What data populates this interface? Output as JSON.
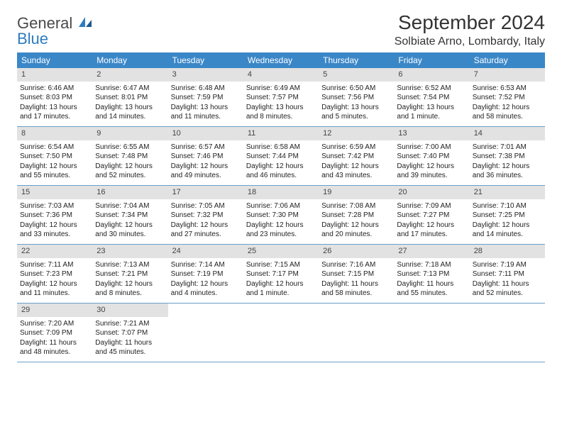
{
  "brand": {
    "general": "General",
    "blue": "Blue"
  },
  "title": "September 2024",
  "location": "Solbiate Arno, Lombardy, Italy",
  "colors": {
    "header_bg": "#3a87c8",
    "header_text": "#ffffff",
    "daynum_bg": "#e2e2e2",
    "row_border": "#6a9fc8",
    "brand_blue": "#2e7cbf",
    "brand_gray": "#4a4a4a"
  },
  "weekdays": [
    "Sunday",
    "Monday",
    "Tuesday",
    "Wednesday",
    "Thursday",
    "Friday",
    "Saturday"
  ],
  "weeks": [
    [
      {
        "n": "1",
        "sr": "6:46 AM",
        "ss": "8:03 PM",
        "dl": "13 hours and 17 minutes."
      },
      {
        "n": "2",
        "sr": "6:47 AM",
        "ss": "8:01 PM",
        "dl": "13 hours and 14 minutes."
      },
      {
        "n": "3",
        "sr": "6:48 AM",
        "ss": "7:59 PM",
        "dl": "13 hours and 11 minutes."
      },
      {
        "n": "4",
        "sr": "6:49 AM",
        "ss": "7:57 PM",
        "dl": "13 hours and 8 minutes."
      },
      {
        "n": "5",
        "sr": "6:50 AM",
        "ss": "7:56 PM",
        "dl": "13 hours and 5 minutes."
      },
      {
        "n": "6",
        "sr": "6:52 AM",
        "ss": "7:54 PM",
        "dl": "13 hours and 1 minute."
      },
      {
        "n": "7",
        "sr": "6:53 AM",
        "ss": "7:52 PM",
        "dl": "12 hours and 58 minutes."
      }
    ],
    [
      {
        "n": "8",
        "sr": "6:54 AM",
        "ss": "7:50 PM",
        "dl": "12 hours and 55 minutes."
      },
      {
        "n": "9",
        "sr": "6:55 AM",
        "ss": "7:48 PM",
        "dl": "12 hours and 52 minutes."
      },
      {
        "n": "10",
        "sr": "6:57 AM",
        "ss": "7:46 PM",
        "dl": "12 hours and 49 minutes."
      },
      {
        "n": "11",
        "sr": "6:58 AM",
        "ss": "7:44 PM",
        "dl": "12 hours and 46 minutes."
      },
      {
        "n": "12",
        "sr": "6:59 AM",
        "ss": "7:42 PM",
        "dl": "12 hours and 43 minutes."
      },
      {
        "n": "13",
        "sr": "7:00 AM",
        "ss": "7:40 PM",
        "dl": "12 hours and 39 minutes."
      },
      {
        "n": "14",
        "sr": "7:01 AM",
        "ss": "7:38 PM",
        "dl": "12 hours and 36 minutes."
      }
    ],
    [
      {
        "n": "15",
        "sr": "7:03 AM",
        "ss": "7:36 PM",
        "dl": "12 hours and 33 minutes."
      },
      {
        "n": "16",
        "sr": "7:04 AM",
        "ss": "7:34 PM",
        "dl": "12 hours and 30 minutes."
      },
      {
        "n": "17",
        "sr": "7:05 AM",
        "ss": "7:32 PM",
        "dl": "12 hours and 27 minutes."
      },
      {
        "n": "18",
        "sr": "7:06 AM",
        "ss": "7:30 PM",
        "dl": "12 hours and 23 minutes."
      },
      {
        "n": "19",
        "sr": "7:08 AM",
        "ss": "7:28 PM",
        "dl": "12 hours and 20 minutes."
      },
      {
        "n": "20",
        "sr": "7:09 AM",
        "ss": "7:27 PM",
        "dl": "12 hours and 17 minutes."
      },
      {
        "n": "21",
        "sr": "7:10 AM",
        "ss": "7:25 PM",
        "dl": "12 hours and 14 minutes."
      }
    ],
    [
      {
        "n": "22",
        "sr": "7:11 AM",
        "ss": "7:23 PM",
        "dl": "12 hours and 11 minutes."
      },
      {
        "n": "23",
        "sr": "7:13 AM",
        "ss": "7:21 PM",
        "dl": "12 hours and 8 minutes."
      },
      {
        "n": "24",
        "sr": "7:14 AM",
        "ss": "7:19 PM",
        "dl": "12 hours and 4 minutes."
      },
      {
        "n": "25",
        "sr": "7:15 AM",
        "ss": "7:17 PM",
        "dl": "12 hours and 1 minute."
      },
      {
        "n": "26",
        "sr": "7:16 AM",
        "ss": "7:15 PM",
        "dl": "11 hours and 58 minutes."
      },
      {
        "n": "27",
        "sr": "7:18 AM",
        "ss": "7:13 PM",
        "dl": "11 hours and 55 minutes."
      },
      {
        "n": "28",
        "sr": "7:19 AM",
        "ss": "7:11 PM",
        "dl": "11 hours and 52 minutes."
      }
    ],
    [
      {
        "n": "29",
        "sr": "7:20 AM",
        "ss": "7:09 PM",
        "dl": "11 hours and 48 minutes."
      },
      {
        "n": "30",
        "sr": "7:21 AM",
        "ss": "7:07 PM",
        "dl": "11 hours and 45 minutes."
      },
      null,
      null,
      null,
      null,
      null
    ]
  ],
  "labels": {
    "sunrise": "Sunrise:",
    "sunset": "Sunset:",
    "daylight": "Daylight:"
  }
}
